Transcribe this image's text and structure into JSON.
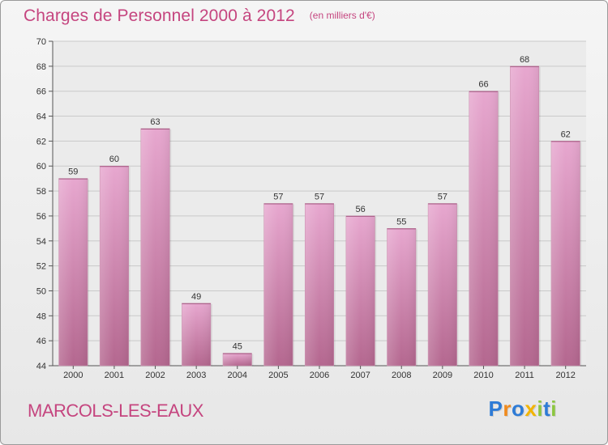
{
  "title": "Charges de Personnel 2000 à 2012",
  "subtitle": "(en milliers d'€)",
  "city": "MARCOLS-LES-EAUX",
  "logo": {
    "text": "Proxiti",
    "letters": [
      {
        "char": "P",
        "color": "#2e7bd6"
      },
      {
        "char": "r",
        "color": "#f08a1c"
      },
      {
        "char": "o",
        "color": "#2e7bd6"
      },
      {
        "char": "x",
        "color": "#f2b400"
      },
      {
        "char": "i",
        "color": "#8cc63f"
      },
      {
        "char": "t",
        "color": "#2e7bd6"
      },
      {
        "char": "i",
        "color": "#8cc63f"
      }
    ]
  },
  "colors": {
    "title": "#c5457f",
    "bar_top": "#e7a7cf",
    "bar_bottom": "#b4678f",
    "grid": "#c9c9c9"
  },
  "chart_data": {
    "type": "bar",
    "title": "Charges de Personnel 2000 à 2012",
    "subtitle": "(en milliers d'€)",
    "categories": [
      "2000",
      "2001",
      "2002",
      "2003",
      "2004",
      "2005",
      "2006",
      "2007",
      "2008",
      "2009",
      "2010",
      "2011",
      "2012"
    ],
    "values": [
      59,
      60,
      63,
      49,
      45,
      57,
      57,
      56,
      55,
      57,
      66,
      68,
      62
    ],
    "ylim": [
      44,
      70
    ],
    "yticks": [
      44,
      46,
      48,
      50,
      52,
      54,
      56,
      58,
      60,
      62,
      64,
      66,
      68,
      70
    ],
    "grid": true,
    "data_labels": true
  }
}
